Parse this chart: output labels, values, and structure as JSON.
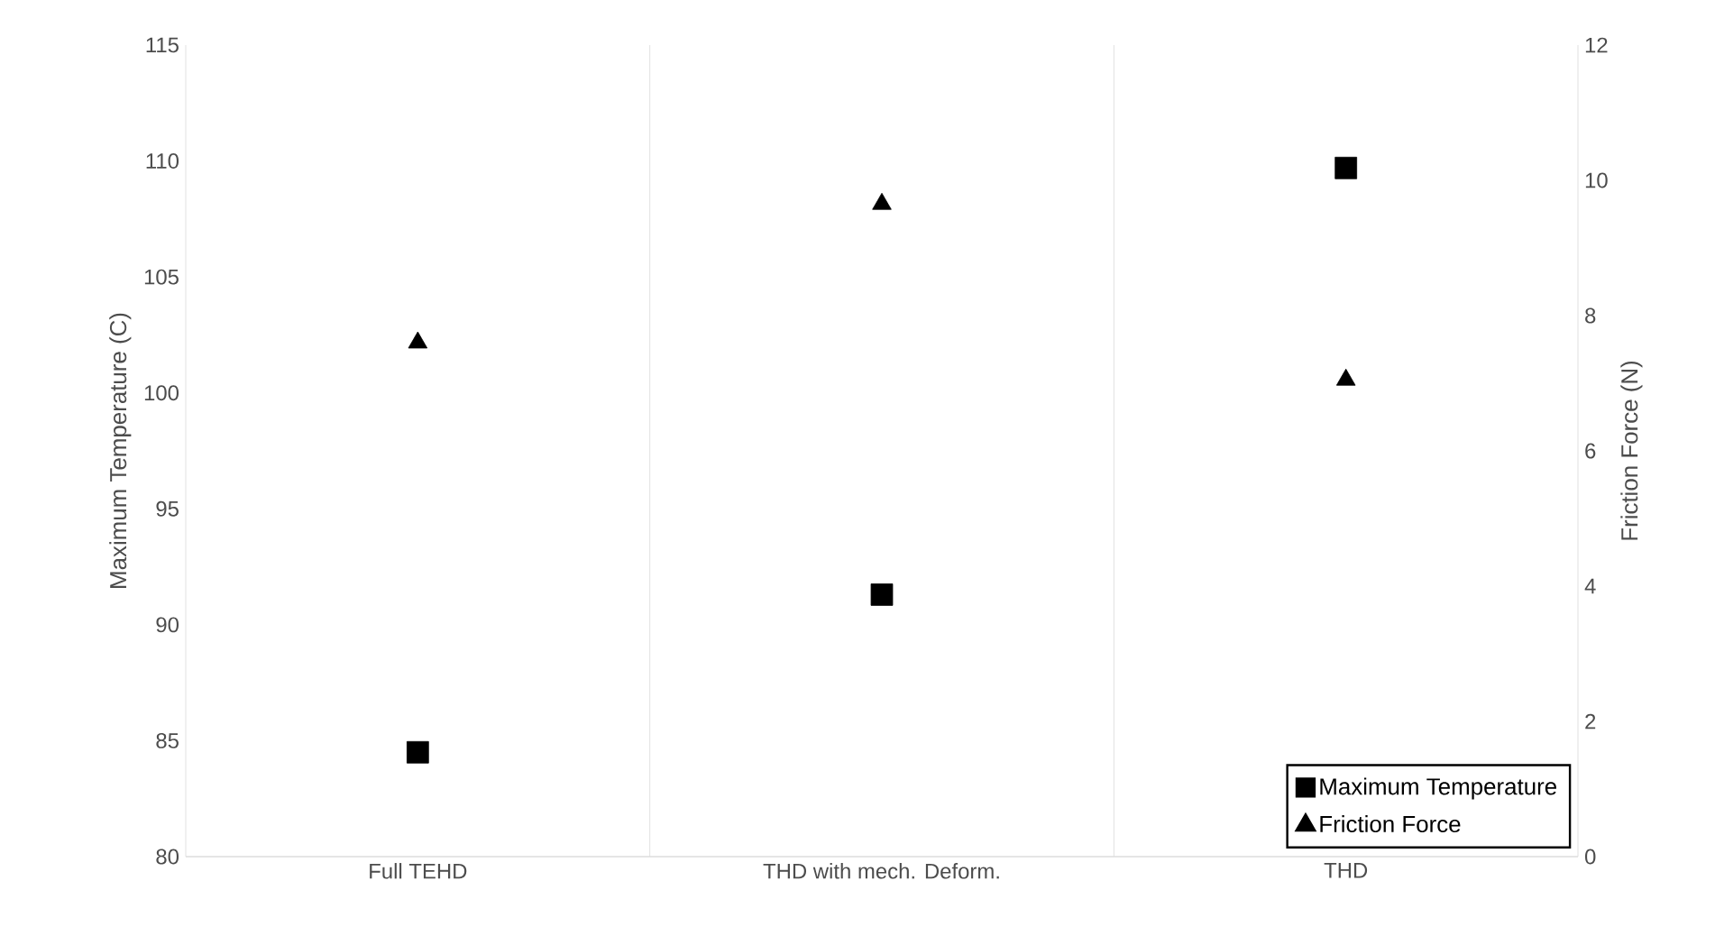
{
  "chart_data": {
    "type": "scatter",
    "categories": [
      "Full TEHD",
      "THD with mech. Deform.",
      "THD"
    ],
    "ylabel": "Maximum Temperature (C)",
    "y2label": "Friction Force (N)",
    "ylim": [
      80,
      115
    ],
    "yticks": [
      80,
      85,
      90,
      95,
      100,
      105,
      110,
      115
    ],
    "y2lim": [
      0,
      12
    ],
    "y2ticks": [
      0,
      2,
      4,
      6,
      8,
      10,
      12
    ],
    "grid": "x",
    "legend": "bottom right",
    "series": [
      {
        "name": "Maximum Temperature",
        "color": "#000000",
        "marker": "square",
        "values": [
          84.5,
          91.3,
          109.7
        ]
      },
      {
        "name": "Friction Force",
        "color": "#000000",
        "marker": "triangle",
        "axis": "y2",
        "values": [
          7.6,
          9.65,
          7.05
        ]
      }
    ]
  }
}
